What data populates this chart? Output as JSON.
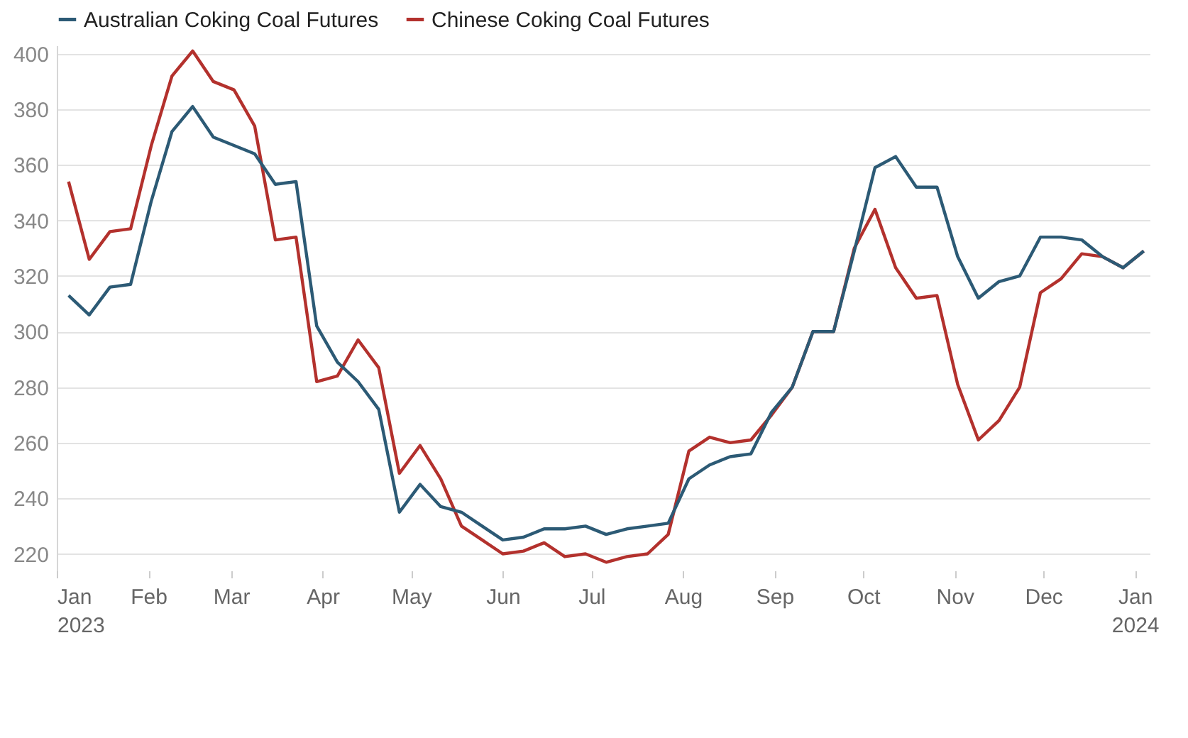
{
  "chart_data": {
    "type": "line",
    "legend": "top left",
    "grid": "y",
    "marker": "none",
    "line_style": "solid",
    "x": [
      "2023-01-05",
      "2023-01-12",
      "2023-01-19",
      "2023-01-26",
      "2023-02-02",
      "2023-02-09",
      "2023-02-16",
      "2023-02-23",
      "2023-03-02",
      "2023-03-09",
      "2023-03-16",
      "2023-03-23",
      "2023-03-30",
      "2023-04-06",
      "2023-04-13",
      "2023-04-20",
      "2023-04-27",
      "2023-05-04",
      "2023-05-11",
      "2023-05-18",
      "2023-05-25",
      "2023-06-01",
      "2023-06-08",
      "2023-06-15",
      "2023-06-22",
      "2023-06-29",
      "2023-07-06",
      "2023-07-13",
      "2023-07-20",
      "2023-07-27",
      "2023-08-03",
      "2023-08-10",
      "2023-08-17",
      "2023-08-24",
      "2023-08-31",
      "2023-09-07",
      "2023-09-14",
      "2023-09-21",
      "2023-09-28",
      "2023-10-05",
      "2023-10-12",
      "2023-10-19",
      "2023-10-26",
      "2023-11-02",
      "2023-11-09",
      "2023-11-16",
      "2023-11-23",
      "2023-11-30",
      "2023-12-07",
      "2023-12-14",
      "2023-12-21",
      "2023-12-28",
      "2024-01-04"
    ],
    "xlim": [
      "2023-01-01",
      "2024-01-06"
    ],
    "xticks": [
      {
        "value": "2023-01-01",
        "label": "Jan 2023"
      },
      {
        "value": "2023-02-01",
        "label": "Feb"
      },
      {
        "value": "2023-03-01",
        "label": "Mar"
      },
      {
        "value": "2023-04-01",
        "label": "Apr"
      },
      {
        "value": "2023-05-01",
        "label": "May"
      },
      {
        "value": "2023-06-01",
        "label": "Jun"
      },
      {
        "value": "2023-07-01",
        "label": "Jul"
      },
      {
        "value": "2023-08-01",
        "label": "Aug"
      },
      {
        "value": "2023-09-01",
        "label": "Sep"
      },
      {
        "value": "2023-10-01",
        "label": "Oct"
      },
      {
        "value": "2023-11-01",
        "label": "Nov"
      },
      {
        "value": "2023-12-01",
        "label": "Dec"
      },
      {
        "value": "2024-01-01",
        "label": "Jan 2024"
      }
    ],
    "ylim": [
      214,
      403
    ],
    "yticks": [
      220,
      240,
      260,
      280,
      300,
      320,
      340,
      360,
      380,
      400
    ],
    "series": [
      {
        "name": "Australian Coking Coal Futures",
        "color": "#2c5a75",
        "values": [
          313,
          306,
          316,
          317,
          347,
          372,
          381,
          370,
          367,
          364,
          353,
          354,
          302,
          289,
          282,
          272,
          235,
          245,
          237,
          235,
          230,
          225,
          226,
          229,
          229,
          230,
          227,
          229,
          230,
          231,
          247,
          252,
          255,
          256,
          271,
          280,
          300,
          300,
          329,
          359,
          363,
          352,
          352,
          327,
          312,
          318,
          320,
          334,
          334,
          333,
          327,
          323,
          329
        ]
      },
      {
        "name": "Chinese Coking Coal Futures",
        "color": "#b3312d",
        "values": [
          354,
          326,
          336,
          337,
          367,
          392,
          401,
          390,
          387,
          374,
          333,
          334,
          282,
          284,
          297,
          287,
          249,
          259,
          247,
          230,
          225,
          220,
          221,
          224,
          219,
          220,
          217,
          219,
          220,
          227,
          257,
          262,
          260,
          261,
          270,
          280,
          300,
          300,
          330,
          344,
          323,
          312,
          313,
          281,
          261,
          268,
          280,
          314,
          319,
          328,
          327,
          323,
          329
        ]
      }
    ]
  }
}
